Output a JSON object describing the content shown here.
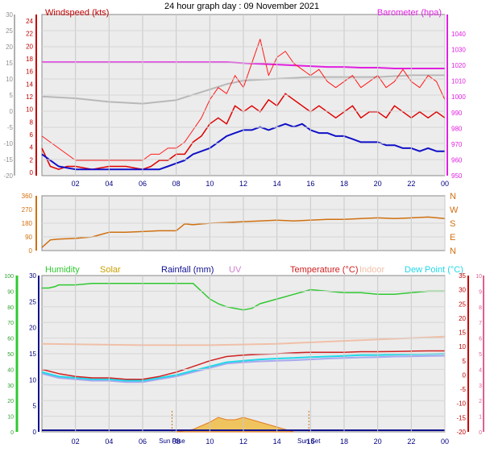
{
  "title": "24 hour graph day : 09 November 2021",
  "colors": {
    "windspeed": "#e00000",
    "gust": "#ff1a1a",
    "avg_wind": "#1010c8",
    "barometer": "#e020e0",
    "bar_gray": "#b8b8b8",
    "direction": "#d07010",
    "humidity": "#30c830",
    "solar": "#c8a000",
    "rainfall": "#101090",
    "uv": "#d080d0",
    "temperature": "#d02020",
    "indoor": "#f0c0a8",
    "dewpoint": "#20d8e8",
    "feels": "#a8a8f0"
  },
  "x_ticks": [
    "02",
    "04",
    "06",
    "08",
    "10",
    "12",
    "14",
    "16",
    "18",
    "20",
    "22",
    "00"
  ],
  "panels": {
    "wind": {
      "left_label": "Windspeed (kts)",
      "right_label": "Barometer (hpa)",
      "left_outer_ticks": [
        "30",
        "25",
        "20",
        "15",
        "10",
        "5",
        "0",
        "-5",
        "-10",
        "-15",
        "-20"
      ],
      "left_inner_ticks": [
        "24",
        "22",
        "20",
        "18",
        "16",
        "14",
        "12",
        "10",
        "8",
        "6",
        "4",
        "2",
        "0"
      ],
      "right_ticks": [
        "1040",
        "1030",
        "1020",
        "1010",
        "1000",
        "990",
        "980",
        "970",
        "960",
        "950"
      ]
    },
    "direction": {
      "left_ticks": [
        "360",
        "270",
        "180",
        "90",
        "0"
      ],
      "right_ticks": [
        "N",
        "W",
        "S",
        "E",
        "N"
      ]
    },
    "temp": {
      "legend": [
        "Humidity",
        "Solar",
        "Rainfall (mm)",
        "UV",
        "Temperature (°C)",
        "Indoor",
        "Dew Point (°C)"
      ],
      "left_outer_ticks": [
        "100",
        "90",
        "80",
        "70",
        "60",
        "50",
        "40",
        "30",
        "20",
        "10",
        "0"
      ],
      "left_inner_ticks": [
        "30",
        "25",
        "20",
        "15",
        "10",
        "5",
        "0"
      ],
      "right_inner_ticks": [
        "35",
        "30",
        "25",
        "20",
        "15",
        "10",
        "5",
        "0",
        "-5",
        "-10",
        "-15",
        "-20"
      ],
      "right_outer_ticks": [
        "10",
        "9",
        "8",
        "7",
        "6",
        "5",
        "4",
        "3",
        "2",
        "1",
        "0"
      ],
      "sun_rise": "Sun Rise",
      "sun_set": "Sun Set"
    }
  },
  "chart_data": [
    {
      "type": "line",
      "title": "",
      "x_unit": "hour",
      "series": [
        {
          "name": "Windspeed (kts)",
          "x": [
            0,
            0.5,
            1,
            1.5,
            2,
            3,
            4,
            5,
            6,
            6.5,
            7,
            7.5,
            8,
            8.5,
            9,
            9.5,
            10,
            10.5,
            11,
            11.5,
            12,
            12.5,
            13,
            13.5,
            14,
            14.5,
            15,
            15.5,
            16,
            16.5,
            17,
            17.5,
            18,
            18.5,
            19,
            19.5,
            20,
            20.5,
            21,
            21.5,
            22,
            22.5,
            23,
            23.5,
            24
          ],
          "values": [
            4,
            1,
            0.5,
            1,
            1,
            0.5,
            1,
            1,
            0.5,
            1,
            2,
            2,
            3,
            3,
            5,
            6,
            8,
            9,
            8,
            11,
            10,
            11,
            10,
            12,
            11,
            13,
            12,
            11,
            10,
            11,
            10,
            9,
            10,
            11,
            9,
            10,
            10,
            9,
            11,
            10,
            9,
            10,
            9,
            10,
            9
          ]
        },
        {
          "name": "Gust (kts)",
          "x": [
            0,
            2,
            4,
            6,
            6.5,
            7,
            7.5,
            8,
            8.5,
            9,
            9.5,
            10,
            10.5,
            11,
            11.5,
            12,
            12.5,
            13,
            13.5,
            14,
            14.5,
            15,
            15.5,
            16,
            16.5,
            17,
            17.5,
            18,
            18.5,
            19,
            19.5,
            20,
            20.5,
            21,
            21.5,
            22,
            22.5,
            23,
            23.5,
            24
          ],
          "values": [
            6,
            2,
            2,
            2,
            3,
            3,
            4,
            4,
            5,
            7,
            9,
            12,
            14,
            13,
            16,
            14,
            18,
            22,
            16,
            19,
            20,
            18,
            17,
            16,
            17,
            15,
            14,
            15,
            16,
            14,
            15,
            16,
            14,
            15,
            17,
            15,
            14,
            16,
            15,
            12
          ]
        },
        {
          "name": "Avg wind (kts)",
          "x": [
            0,
            1,
            2,
            3,
            4,
            5,
            6,
            7,
            7.5,
            8,
            8.5,
            9,
            9.5,
            10,
            10.5,
            11,
            11.5,
            12,
            12.5,
            13,
            13.5,
            14,
            14.5,
            15,
            15.5,
            16,
            16.5,
            17,
            17.5,
            18,
            18.5,
            19,
            19.5,
            20,
            20.5,
            21,
            21.5,
            22,
            22.5,
            23,
            23.5,
            24
          ],
          "values": [
            3,
            1,
            0.5,
            0.5,
            0.5,
            0.5,
            0.5,
            0.5,
            1,
            1.5,
            2,
            3,
            3.5,
            4,
            5,
            6,
            6.5,
            7,
            7,
            7.5,
            7,
            7.5,
            8,
            7.5,
            8,
            7,
            6.5,
            6.5,
            6,
            6,
            5.5,
            5,
            5,
            5,
            4.5,
            4.5,
            4,
            4,
            3.5,
            4,
            3.5,
            3.5
          ]
        },
        {
          "name": "Barometer (hpa)",
          "x": [
            0,
            2,
            4,
            6,
            8,
            10,
            11,
            12,
            13,
            14,
            15,
            16,
            17,
            18,
            19,
            20,
            21,
            22,
            23,
            24
          ],
          "values": [
            1022,
            1022,
            1022,
            1022,
            1022,
            1022,
            1022,
            1021.5,
            1021,
            1020.5,
            1020,
            1019.5,
            1019,
            1019,
            1018.5,
            1018.5,
            1018,
            1018,
            1018,
            1018
          ]
        }
      ],
      "left_axis_ranges": {
        "windspeed": [
          0,
          25
        ]
      },
      "right_axis_range": [
        950,
        1045
      ],
      "grid": true
    },
    {
      "type": "line",
      "title": "",
      "series": [
        {
          "name": "Wind direction",
          "x": [
            0,
            0.5,
            1,
            2,
            3,
            4,
            5,
            6,
            7,
            8,
            8.5,
            9,
            10,
            11,
            12,
            13,
            14,
            15,
            16,
            17,
            18,
            19,
            20,
            21,
            22,
            23,
            24
          ],
          "values": [
            20,
            70,
            75,
            80,
            90,
            120,
            120,
            125,
            130,
            130,
            175,
            170,
            180,
            185,
            190,
            195,
            200,
            195,
            200,
            205,
            205,
            210,
            215,
            210,
            215,
            220,
            210
          ]
        }
      ],
      "ylim": [
        0,
        360
      ],
      "grid": true
    },
    {
      "type": "line",
      "title": "",
      "series": [
        {
          "name": "Temperature (°C)",
          "x": [
            0,
            1,
            2,
            3,
            4,
            5,
            6,
            7,
            8,
            9,
            10,
            11,
            12,
            13,
            14,
            15,
            16,
            17,
            18,
            19,
            20,
            21,
            22,
            23,
            24
          ],
          "values": [
            2,
            0.5,
            -0.5,
            -1,
            -1,
            -1.5,
            -1.5,
            -0.5,
            1,
            3,
            5,
            6.5,
            7,
            7.3,
            7.5,
            7.8,
            8,
            8,
            8,
            8.2,
            8.2,
            8.3,
            8.4,
            8.5,
            8.5
          ]
        },
        {
          "name": "Dew Point (°C)",
          "x": [
            0,
            1,
            2,
            3,
            4,
            5,
            6,
            7,
            8,
            9,
            10,
            11,
            12,
            13,
            14,
            15,
            16,
            17,
            18,
            19,
            20,
            21,
            22,
            23,
            24
          ],
          "values": [
            1,
            -0.5,
            -1,
            -1.5,
            -1.5,
            -2,
            -2,
            -1,
            0,
            1.5,
            3,
            4.5,
            5,
            5.5,
            5.8,
            6,
            6.3,
            6.5,
            6.7,
            7,
            7,
            7.2,
            7.3,
            7.4,
            7.5
          ]
        },
        {
          "name": "Feels",
          "x": [
            0,
            1,
            2,
            3,
            4,
            5,
            6,
            7,
            8,
            9,
            10,
            11,
            12,
            13,
            14,
            15,
            16,
            17,
            18,
            19,
            20,
            21,
            22,
            23,
            24
          ],
          "values": [
            0.5,
            -1,
            -1.5,
            -2,
            -2,
            -2.5,
            -2.5,
            -1.5,
            -0.5,
            1,
            2.5,
            4,
            4.5,
            4.8,
            5,
            5.2,
            5.5,
            5.8,
            6,
            6.2,
            6.3,
            6.5,
            6.6,
            6.7,
            6.8
          ]
        },
        {
          "name": "Indoor",
          "x": [
            0,
            6,
            10,
            14,
            18,
            22,
            24
          ],
          "values": [
            11,
            10.5,
            10.5,
            11,
            12,
            13,
            13.5
          ]
        },
        {
          "name": "Humidity",
          "x": [
            0,
            0.4,
            0.8,
            1,
            2,
            3,
            4,
            5,
            6,
            7,
            8,
            9,
            10,
            10.5,
            11,
            11.5,
            12,
            12.5,
            13,
            14,
            15,
            16,
            17,
            18,
            19,
            20,
            21,
            22,
            23,
            24
          ],
          "values": [
            92,
            92,
            93,
            94,
            94,
            95,
            95,
            95,
            95,
            95,
            95,
            95,
            85,
            82,
            80,
            79,
            78,
            79,
            82,
            85,
            88,
            91,
            90,
            89,
            89,
            88,
            88,
            89,
            90,
            90
          ]
        },
        {
          "name": "Solar",
          "x": [
            8,
            9,
            10,
            10.5,
            11,
            11.5,
            12,
            12.5,
            13,
            13.5,
            14,
            14.5,
            15
          ],
          "values": [
            0,
            0.1,
            0.4,
            0.6,
            0.5,
            0.5,
            0.6,
            0.5,
            0.4,
            0.3,
            0.2,
            0.1,
            0
          ]
        },
        {
          "name": "Rainfall (mm)",
          "x": [
            0,
            24
          ],
          "values": [
            0,
            0
          ]
        }
      ],
      "axis_ranges": {
        "humidity": [
          0,
          100
        ],
        "temperature": [
          -20,
          35
        ],
        "left_inner": [
          0,
          30
        ],
        "right_outer": [
          0,
          10
        ]
      },
      "grid": true
    }
  ]
}
